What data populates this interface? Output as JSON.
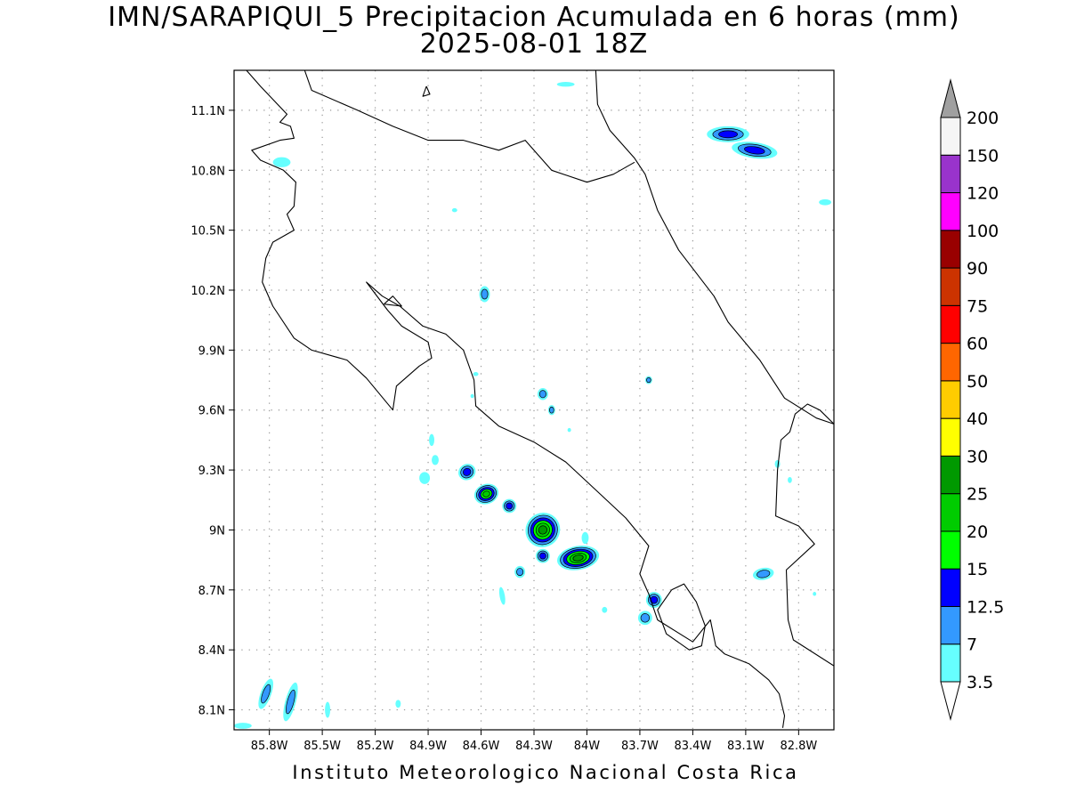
{
  "title": {
    "line1": "IMN/SARAPIQUI_5 Precipitacion Acumulada en 6 horas (mm)",
    "line2": "2025-08-01 18Z"
  },
  "footer": "Instituto Meteorologico Nacional Costa Rica",
  "map": {
    "extent": {
      "lon": [
        -86.0,
        -82.6
      ],
      "lat": [
        8.0,
        11.3
      ]
    },
    "grid": "dotted",
    "x_ticks": [
      {
        "lon": -85.8,
        "label": "85.8W"
      },
      {
        "lon": -85.5,
        "label": "85.5W"
      },
      {
        "lon": -85.2,
        "label": "85.2W"
      },
      {
        "lon": -84.9,
        "label": "84.9W"
      },
      {
        "lon": -84.6,
        "label": "84.6W"
      },
      {
        "lon": -84.3,
        "label": "84.3W"
      },
      {
        "lon": -84.0,
        "label": "84W"
      },
      {
        "lon": -83.7,
        "label": "83.7W"
      },
      {
        "lon": -83.4,
        "label": "83.4W"
      },
      {
        "lon": -83.1,
        "label": "83.1W"
      },
      {
        "lon": -82.8,
        "label": "82.8W"
      }
    ],
    "y_ticks": [
      {
        "lat": 8.1,
        "label": "8.1N"
      },
      {
        "lat": 8.4,
        "label": "8.4N"
      },
      {
        "lat": 8.7,
        "label": "8.7N"
      },
      {
        "lat": 9.0,
        "label": "9N"
      },
      {
        "lat": 9.3,
        "label": "9.3N"
      },
      {
        "lat": 9.6,
        "label": "9.6N"
      },
      {
        "lat": 9.9,
        "label": "9.9N"
      },
      {
        "lat": 10.2,
        "label": "10.2N"
      },
      {
        "lat": 10.5,
        "label": "10.5N"
      },
      {
        "lat": 10.8,
        "label": "10.8N"
      },
      {
        "lat": 11.1,
        "label": "11.1N"
      }
    ],
    "coastlines": [
      [
        [
          -85.93,
          11.3
        ],
        [
          -85.85,
          11.22
        ],
        [
          -85.7,
          11.08
        ],
        [
          -85.74,
          11.04
        ],
        [
          -85.68,
          11.02
        ],
        [
          -85.66,
          10.96
        ],
        [
          -85.74,
          10.95
        ],
        [
          -85.9,
          10.9
        ],
        [
          -85.85,
          10.85
        ],
        [
          -85.72,
          10.8
        ],
        [
          -85.65,
          10.74
        ],
        [
          -85.66,
          10.62
        ],
        [
          -85.7,
          10.58
        ],
        [
          -85.66,
          10.5
        ],
        [
          -85.78,
          10.44
        ],
        [
          -85.82,
          10.36
        ],
        [
          -85.84,
          10.24
        ],
        [
          -85.78,
          10.12
        ],
        [
          -85.66,
          9.96
        ],
        [
          -85.56,
          9.9
        ],
        [
          -85.36,
          9.85
        ],
        [
          -85.25,
          9.76
        ],
        [
          -85.1,
          9.6
        ],
        [
          -85.08,
          9.72
        ],
        [
          -84.95,
          9.82
        ],
        [
          -84.88,
          9.86
        ],
        [
          -84.9,
          9.94
        ],
        [
          -85.05,
          10.02
        ],
        [
          -85.13,
          10.1
        ],
        [
          -85.25,
          10.24
        ],
        [
          -85.16,
          10.17
        ],
        [
          -85.06,
          10.12
        ],
        [
          -84.93,
          10.02
        ],
        [
          -84.8,
          9.98
        ],
        [
          -84.7,
          9.9
        ],
        [
          -84.64,
          9.75
        ],
        [
          -84.63,
          9.62
        ],
        [
          -84.5,
          9.52
        ],
        [
          -84.3,
          9.44
        ],
        [
          -84.12,
          9.34
        ],
        [
          -83.95,
          9.2
        ],
        [
          -83.78,
          9.06
        ],
        [
          -83.65,
          8.92
        ],
        [
          -83.7,
          8.78
        ],
        [
          -83.65,
          8.68
        ],
        [
          -83.6,
          8.55
        ],
        [
          -83.4,
          8.44
        ],
        [
          -83.3,
          8.55
        ],
        [
          -83.27,
          8.42
        ],
        [
          -83.22,
          8.38
        ],
        [
          -83.08,
          8.33
        ],
        [
          -82.97,
          8.25
        ],
        [
          -82.91,
          8.18
        ],
        [
          -82.88,
          8.07
        ],
        [
          -82.89,
          8.01
        ]
      ],
      [
        [
          -82.6,
          9.53
        ],
        [
          -82.68,
          9.6
        ],
        [
          -82.75,
          9.63
        ],
        [
          -82.82,
          9.58
        ],
        [
          -82.85,
          9.49
        ],
        [
          -82.9,
          9.45
        ],
        [
          -82.92,
          9.3
        ],
        [
          -82.93,
          9.07
        ],
        [
          -82.8,
          9.02
        ],
        [
          -82.71,
          8.93
        ],
        [
          -82.87,
          8.8
        ],
        [
          -82.86,
          8.55
        ],
        [
          -82.83,
          8.45
        ],
        [
          -82.6,
          8.32
        ]
      ],
      [
        [
          -83.95,
          11.3
        ],
        [
          -83.94,
          11.13
        ],
        [
          -83.87,
          11.0
        ],
        [
          -83.73,
          10.86
        ],
        [
          -83.67,
          10.78
        ],
        [
          -83.6,
          10.6
        ],
        [
          -83.48,
          10.4
        ],
        [
          -83.28,
          10.17
        ],
        [
          -83.2,
          10.04
        ],
        [
          -83.02,
          9.85
        ],
        [
          -82.88,
          9.66
        ],
        [
          -82.7,
          9.56
        ],
        [
          -82.6,
          9.53
        ]
      ],
      [
        [
          -85.6,
          11.3
        ],
        [
          -85.56,
          11.2
        ],
        [
          -85.3,
          11.1
        ],
        [
          -85.1,
          11.02
        ],
        [
          -84.9,
          10.95
        ],
        [
          -84.7,
          10.95
        ],
        [
          -84.5,
          10.9
        ],
        [
          -84.35,
          10.95
        ],
        [
          -84.2,
          10.8
        ],
        [
          -84.0,
          10.74
        ],
        [
          -83.85,
          10.78
        ],
        [
          -83.73,
          10.84
        ]
      ],
      [
        [
          -84.91,
          11.22
        ],
        [
          -84.93,
          11.17
        ],
        [
          -84.89,
          11.18
        ],
        [
          -84.91,
          11.22
        ]
      ],
      [
        [
          -85.15,
          10.13
        ],
        [
          -85.05,
          10.12
        ],
        [
          -85.1,
          10.17
        ],
        [
          -85.15,
          10.13
        ]
      ],
      [
        [
          -83.52,
          8.7
        ],
        [
          -83.45,
          8.73
        ],
        [
          -83.38,
          8.64
        ],
        [
          -83.33,
          8.52
        ],
        [
          -83.35,
          8.42
        ],
        [
          -83.42,
          8.4
        ],
        [
          -83.55,
          8.48
        ],
        [
          -83.6,
          8.6
        ],
        [
          -83.52,
          8.7
        ]
      ]
    ]
  },
  "precip": {
    "levels": [
      3.5,
      7,
      12.5,
      15,
      20,
      25,
      30,
      40,
      50,
      60,
      75,
      90,
      100,
      120,
      150,
      200
    ],
    "colors": [
      "#66ffff",
      "#3399ff",
      "#0000ff",
      "#00ff00",
      "#00cc00",
      "#009900",
      "#ffff00",
      "#ffcc00",
      "#ff6600",
      "#ff0000",
      "#cc3300",
      "#990000",
      "#ff00ff",
      "#9933cc",
      "#f5f5f5",
      "#a0a0a0"
    ],
    "cells": [
      {
        "lon": -84.25,
        "lat": 9.0,
        "rx": 0.1,
        "ry": 0.085,
        "rot": 45,
        "level": 5
      },
      {
        "lon": -84.05,
        "lat": 8.86,
        "rx": 0.12,
        "ry": 0.06,
        "rot": 10,
        "level": 5
      },
      {
        "lon": -84.57,
        "lat": 9.18,
        "rx": 0.07,
        "ry": 0.05,
        "rot": 20,
        "level": 4
      },
      {
        "lon": -84.68,
        "lat": 9.29,
        "rx": 0.05,
        "ry": 0.04,
        "rot": 30,
        "level": 2
      },
      {
        "lon": -84.44,
        "lat": 9.12,
        "rx": 0.04,
        "ry": 0.035,
        "rot": 0,
        "level": 2
      },
      {
        "lon": -84.25,
        "lat": 8.87,
        "rx": 0.04,
        "ry": 0.035,
        "rot": 0,
        "level": 2
      },
      {
        "lon": -83.62,
        "lat": 8.65,
        "rx": 0.045,
        "ry": 0.04,
        "rot": 40,
        "level": 2
      },
      {
        "lon": -83.2,
        "lat": 10.98,
        "rx": 0.12,
        "ry": 0.04,
        "rot": 0,
        "level": 2
      },
      {
        "lon": -83.05,
        "lat": 10.9,
        "rx": 0.13,
        "ry": 0.04,
        "rot": -8,
        "level": 2
      },
      {
        "lon": -84.58,
        "lat": 10.18,
        "rx": 0.03,
        "ry": 0.04,
        "rot": 0,
        "level": 1
      },
      {
        "lon": -83.67,
        "lat": 8.56,
        "rx": 0.04,
        "ry": 0.035,
        "rot": 30,
        "level": 1
      },
      {
        "lon": -83.0,
        "lat": 8.78,
        "rx": 0.06,
        "ry": 0.03,
        "rot": 10,
        "level": 1
      },
      {
        "lon": -84.38,
        "lat": 8.79,
        "rx": 0.03,
        "ry": 0.03,
        "rot": 0,
        "level": 1
      },
      {
        "lon": -85.82,
        "lat": 8.18,
        "rx": 0.03,
        "ry": 0.08,
        "rot": -20,
        "level": 1
      },
      {
        "lon": -85.68,
        "lat": 8.14,
        "rx": 0.03,
        "ry": 0.1,
        "rot": -15,
        "level": 1
      },
      {
        "lon": -84.25,
        "lat": 9.68,
        "rx": 0.03,
        "ry": 0.03,
        "rot": 0,
        "level": 1
      },
      {
        "lon": -84.2,
        "lat": 9.6,
        "rx": 0.02,
        "ry": 0.025,
        "rot": 0,
        "level": 1
      },
      {
        "lon": -83.65,
        "lat": 9.75,
        "rx": 0.02,
        "ry": 0.02,
        "rot": 0,
        "level": 1
      },
      {
        "lon": -85.73,
        "lat": 10.84,
        "rx": 0.05,
        "ry": 0.025,
        "rot": 0,
        "level": 0
      },
      {
        "lon": -84.12,
        "lat": 11.23,
        "rx": 0.05,
        "ry": 0.012,
        "rot": 0,
        "level": 0
      },
      {
        "lon": -82.65,
        "lat": 10.64,
        "rx": 0.035,
        "ry": 0.015,
        "rot": 0,
        "level": 0
      },
      {
        "lon": -84.75,
        "lat": 10.6,
        "rx": 0.015,
        "ry": 0.01,
        "rot": 0,
        "level": 0
      },
      {
        "lon": -84.63,
        "lat": 9.78,
        "rx": 0.015,
        "ry": 0.01,
        "rot": 0,
        "level": 0
      },
      {
        "lon": -84.88,
        "lat": 9.45,
        "rx": 0.015,
        "ry": 0.03,
        "rot": 0,
        "level": 0
      },
      {
        "lon": -84.86,
        "lat": 9.35,
        "rx": 0.02,
        "ry": 0.025,
        "rot": 0,
        "level": 0
      },
      {
        "lon": -84.92,
        "lat": 9.26,
        "rx": 0.03,
        "ry": 0.03,
        "rot": 0,
        "level": 0
      },
      {
        "lon": -84.48,
        "lat": 8.67,
        "rx": 0.015,
        "ry": 0.045,
        "rot": 10,
        "level": 0
      },
      {
        "lon": -84.01,
        "lat": 8.96,
        "rx": 0.02,
        "ry": 0.03,
        "rot": 0,
        "level": 0
      },
      {
        "lon": -82.92,
        "lat": 9.33,
        "rx": 0.015,
        "ry": 0.02,
        "rot": 0,
        "level": 0
      },
      {
        "lon": -82.85,
        "lat": 9.25,
        "rx": 0.012,
        "ry": 0.015,
        "rot": 0,
        "level": 0
      },
      {
        "lon": -84.65,
        "lat": 9.67,
        "rx": 0.01,
        "ry": 0.01,
        "rot": 0,
        "level": 0
      },
      {
        "lon": -84.1,
        "lat": 9.5,
        "rx": 0.01,
        "ry": 0.01,
        "rot": 0,
        "level": 0
      },
      {
        "lon": -85.07,
        "lat": 8.13,
        "rx": 0.015,
        "ry": 0.02,
        "rot": 0,
        "level": 0
      },
      {
        "lon": -85.47,
        "lat": 8.1,
        "rx": 0.015,
        "ry": 0.04,
        "rot": 0,
        "level": 0
      },
      {
        "lon": -85.95,
        "lat": 8.02,
        "rx": 0.05,
        "ry": 0.015,
        "rot": 0,
        "level": 0
      },
      {
        "lon": -83.9,
        "lat": 8.6,
        "rx": 0.015,
        "ry": 0.015,
        "rot": 0,
        "level": 0
      },
      {
        "lon": -82.71,
        "lat": 8.68,
        "rx": 0.01,
        "ry": 0.01,
        "rot": 0,
        "level": 0
      }
    ]
  }
}
